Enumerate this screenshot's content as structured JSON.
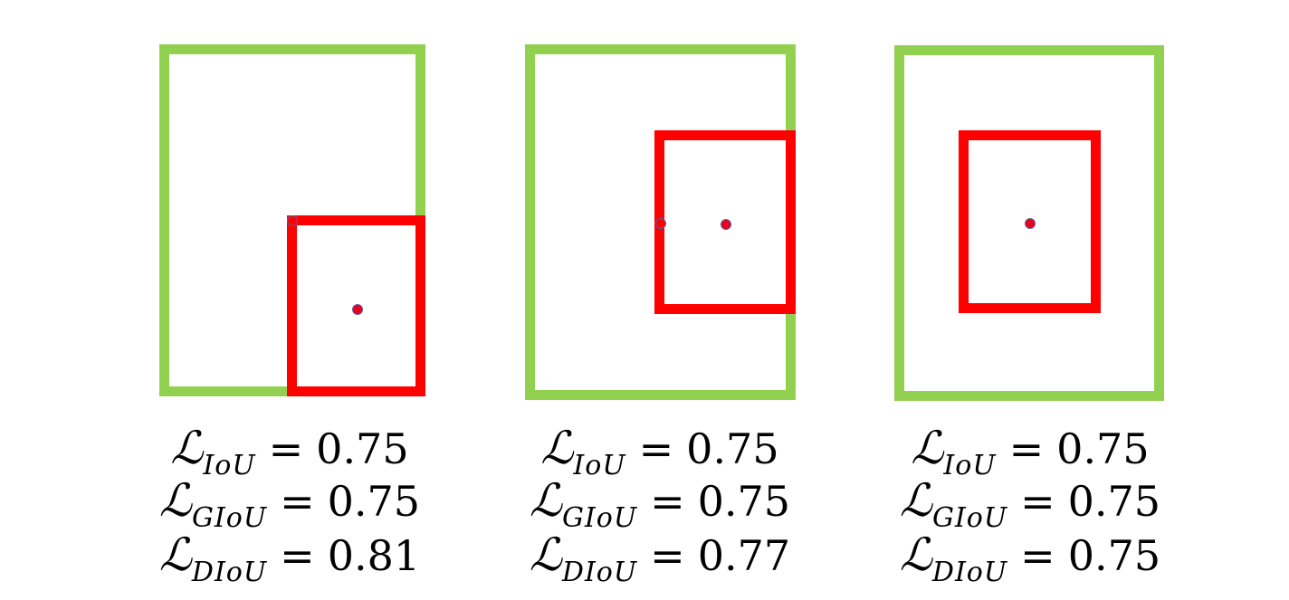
{
  "colors": {
    "ground_truth_box": "#92d050",
    "predicted_box": "#ff0000",
    "center_dot": "#e8001c",
    "center_dot_outline": "#5a5fa0"
  },
  "panels": [
    {
      "formulas": [
        {
          "symbol": "ℒ",
          "subscript": "IoU",
          "equals": "=",
          "value": "0.75"
        },
        {
          "symbol": "ℒ",
          "subscript": "GIoU",
          "equals": "=",
          "value": "0.75"
        },
        {
          "symbol": "ℒ",
          "subscript": "DIoU",
          "equals": "=",
          "value": "0.81"
        }
      ]
    },
    {
      "formulas": [
        {
          "symbol": "ℒ",
          "subscript": "IoU",
          "equals": "=",
          "value": "0.75"
        },
        {
          "symbol": "ℒ",
          "subscript": "GIoU",
          "equals": "=",
          "value": "0.75"
        },
        {
          "symbol": "ℒ",
          "subscript": "DIoU",
          "equals": "=",
          "value": "0.77"
        }
      ]
    },
    {
      "formulas": [
        {
          "symbol": "ℒ",
          "subscript": "IoU",
          "equals": "=",
          "value": "0.75"
        },
        {
          "symbol": "ℒ",
          "subscript": "GIoU",
          "equals": "=",
          "value": "0.75"
        },
        {
          "symbol": "ℒ",
          "subscript": "DIoU",
          "equals": "=",
          "value": "0.75"
        }
      ]
    }
  ]
}
